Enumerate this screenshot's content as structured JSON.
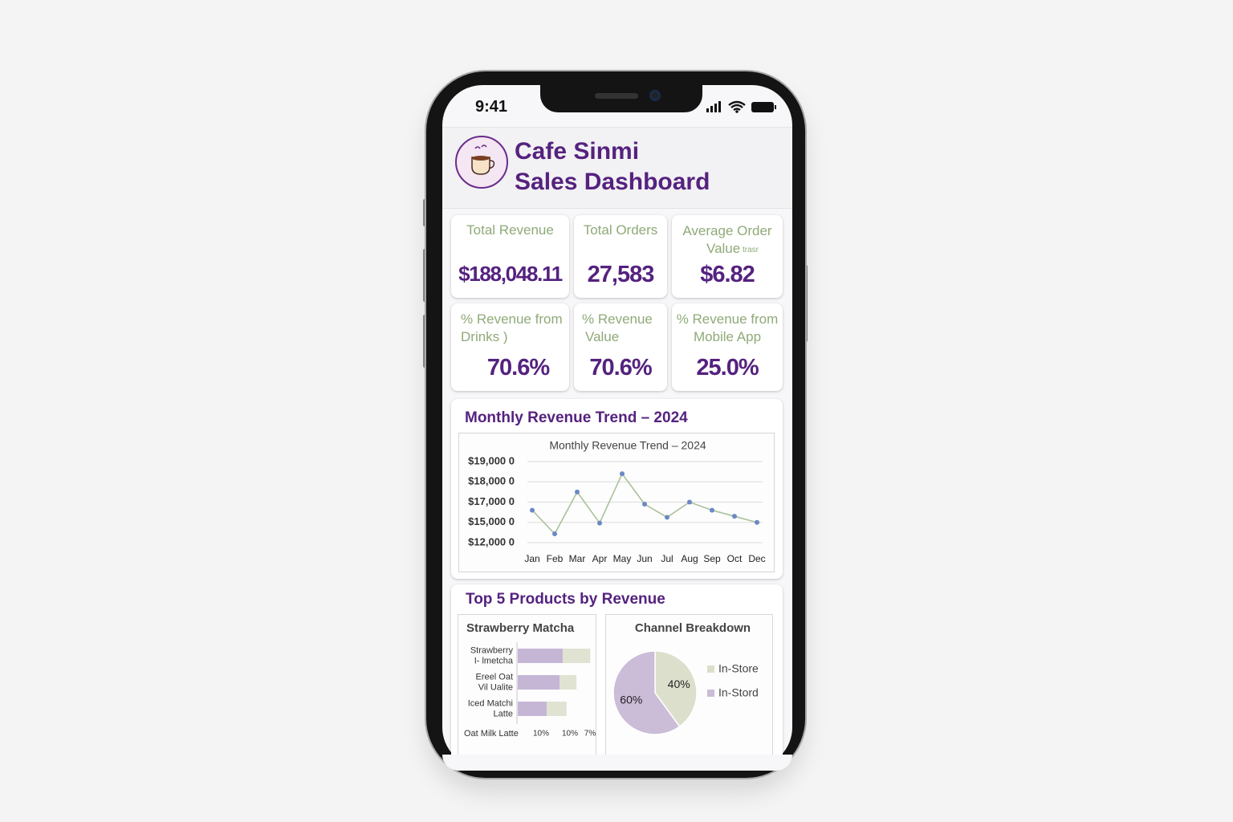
{
  "status_bar": {
    "time": "9:41"
  },
  "header": {
    "title": [
      "Cafe Sinmi",
      "Sales Dashboard"
    ]
  },
  "kpis": [
    {
      "label": [
        "Total Revenue"
      ],
      "value": "$188,048.11"
    },
    {
      "label": [
        "Total Orders"
      ],
      "value": "27,583"
    },
    {
      "label": [
        "Average Order",
        "Value"
      ],
      "note": "trasr",
      "value": "$6.82"
    },
    {
      "label": [
        "% Revenue from",
        "Drinks )"
      ],
      "value": "70.6%"
    },
    {
      "label": [
        "% Revenue",
        "Value"
      ],
      "value": "70.6%"
    },
    {
      "label": [
        "% Revenue from",
        "Mobile App"
      ],
      "value": "25.0%"
    }
  ],
  "revenue_trend": {
    "card_title": "Monthly Revenue Trend – 2024",
    "chart": {
      "type": "line",
      "title": "Monthly Revenue Trend – 2024",
      "categories": [
        "Jan",
        "Feb",
        "Mar",
        "Apr",
        "May",
        "Jun",
        "Jul",
        "Aug",
        "Sep",
        "Oct",
        "Dec"
      ],
      "values": [
        16200,
        13300,
        17500,
        14900,
        18400,
        16800,
        15500,
        17000,
        16200,
        15600,
        15000
      ],
      "color": "#a9c29a",
      "marker_color": "#6b88c4",
      "ylim": [
        12000,
        19000
      ],
      "yticks": [
        {
          "value": 19000,
          "label": "$19,000 0"
        },
        {
          "value": 18000,
          "label": "$18,000 0"
        },
        {
          "value": 17000,
          "label": "$17,000 0"
        },
        {
          "value": 15000,
          "label": "$15,000 0"
        },
        {
          "value": 12000,
          "label": "$12,000 0"
        }
      ],
      "grid": true
    }
  },
  "top_products": {
    "card_title": "Top 5 Products by Revenue",
    "chart": {
      "type": "bar",
      "orientation": "horizontal",
      "stacked": true,
      "title": "Strawberry Matcha",
      "categories": [
        [
          "Strawberry",
          "I- lmetcha"
        ],
        [
          "Ereel Oat",
          "Vil Ualite"
        ],
        [
          "Iced Matchi",
          "Latte"
        ]
      ],
      "series": [
        {
          "color": "#c5b6d6",
          "values": [
            59,
            55,
            38
          ]
        },
        {
          "color": "#e0e3d2",
          "values": [
            36,
            22,
            26
          ]
        }
      ],
      "xlim": [
        0,
        100
      ],
      "footer_label": "Oat Milk Latte",
      "x_tick_labels": [
        "10%",
        "10%",
        "7%"
      ]
    }
  },
  "channel_breakdown": {
    "chart": {
      "type": "pie",
      "title": "Channel Breakdown",
      "categories": [
        "In-Store",
        "In-Stord"
      ],
      "values": [
        40,
        60
      ],
      "value_labels": [
        "40%",
        "60%"
      ],
      "colors": [
        "#dcdfcb",
        "#cbbcd8"
      ]
    }
  }
}
